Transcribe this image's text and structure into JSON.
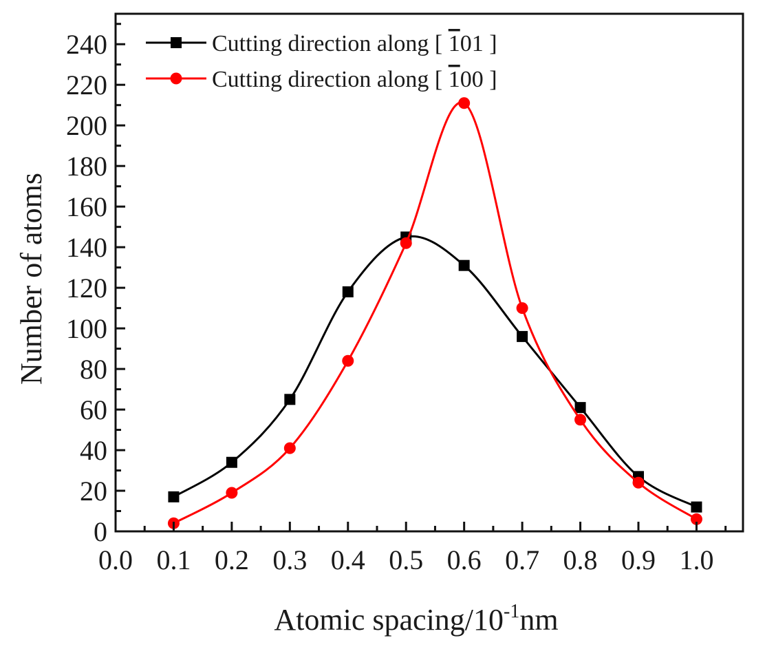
{
  "chart_data": {
    "type": "line",
    "title": "",
    "xlabel": "Atomic spacing/10",
    "xlabel_superscript": "-1",
    "xlabel_unit": "nm",
    "ylabel": "Number of atoms",
    "xlim": [
      0.0,
      1.08
    ],
    "ylim": [
      0,
      255
    ],
    "x_ticks": [
      "0.0",
      "0.1",
      "0.2",
      "0.3",
      "0.4",
      "0.5",
      "0.6",
      "0.7",
      "0.8",
      "0.9",
      "1.0"
    ],
    "y_ticks": [
      "0",
      "20",
      "40",
      "60",
      "80",
      "100",
      "120",
      "140",
      "160",
      "180",
      "200",
      "220",
      "240"
    ],
    "legend_position": "top-left",
    "x": [
      0.1,
      0.2,
      0.3,
      0.4,
      0.5,
      0.6,
      0.7,
      0.8,
      0.9,
      1.0
    ],
    "series": [
      {
        "name": "Cutting direction along [ 101 ]",
        "label_prefix": "Cutting direction along [ ",
        "label_overbar": "1",
        "label_suffix": "01 ]",
        "color": "#000000",
        "marker": "square",
        "values": [
          17,
          34,
          65,
          118,
          145,
          131,
          96,
          61,
          27,
          12
        ]
      },
      {
        "name": "Cutting direction along [ 100 ]",
        "label_prefix": "Cutting direction along [ ",
        "label_overbar": "1",
        "label_suffix": "00 ]",
        "color": "#ff0000",
        "marker": "circle",
        "values": [
          4,
          19,
          41,
          84,
          142,
          211,
          110,
          55,
          24,
          6
        ]
      }
    ]
  }
}
